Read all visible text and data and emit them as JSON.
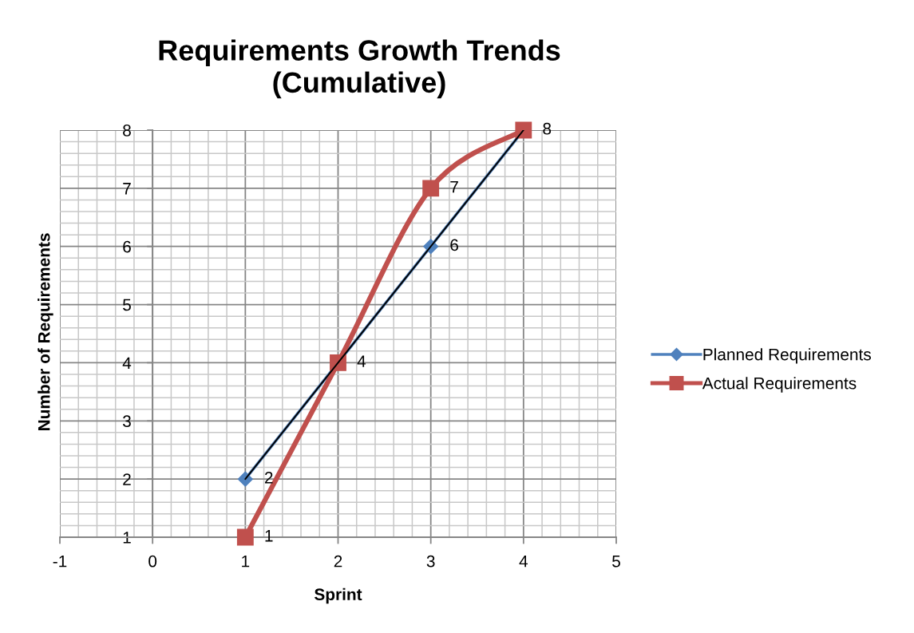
{
  "chart_data": {
    "type": "line",
    "title": "Requirements Growth Trends\n(Cumulative)",
    "xlabel": "Sprint",
    "ylabel": "Number of Requirements",
    "x": [
      1,
      2,
      3,
      4
    ],
    "series": [
      {
        "name": "Planned Requirements",
        "color": "#4f81bd",
        "marker": "diamond",
        "values": [
          2,
          4,
          6,
          8
        ],
        "value_labels": [
          "2",
          null,
          "6",
          null
        ]
      },
      {
        "name": "Actual Requirements",
        "color": "#c0504d",
        "marker": "square",
        "values": [
          1,
          4,
          7,
          8
        ],
        "value_labels": [
          "1",
          "4",
          "7",
          "8"
        ]
      },
      {
        "type": "line",
        "color": "#000000",
        "marker": "none",
        "x": [
          1,
          4
        ],
        "values": [
          2,
          8
        ]
      }
    ],
    "xlim": [
      -1,
      5
    ],
    "xticks": [
      -1,
      0,
      1,
      2,
      3,
      4,
      5
    ],
    "ylim": [
      1,
      8
    ],
    "yticks": [
      1,
      2,
      3,
      4,
      5,
      6,
      7,
      8
    ],
    "grid": true,
    "legend": "right"
  }
}
